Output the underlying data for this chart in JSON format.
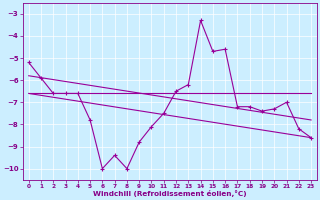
{
  "xlabel": "Windchill (Refroidissement éolien,°C)",
  "background_color": "#cceeff",
  "line_color": "#990099",
  "xlim": [
    -0.5,
    23.5
  ],
  "ylim": [
    -10.5,
    -2.5
  ],
  "yticks": [
    -10,
    -9,
    -8,
    -7,
    -6,
    -5,
    -4,
    -3
  ],
  "xticks": [
    0,
    1,
    2,
    3,
    4,
    5,
    6,
    7,
    8,
    9,
    10,
    11,
    12,
    13,
    14,
    15,
    16,
    17,
    18,
    19,
    20,
    21,
    22,
    23
  ],
  "series1_x": [
    0,
    1,
    2,
    3,
    4,
    5,
    6,
    7,
    8,
    9,
    10,
    11,
    12,
    13,
    14,
    15,
    16,
    17,
    18,
    19,
    20,
    21,
    22,
    23
  ],
  "series1_y": [
    -5.2,
    -5.9,
    -6.6,
    -6.6,
    -6.6,
    -7.8,
    -10.0,
    -9.4,
    -10.0,
    -8.8,
    -8.1,
    -7.5,
    -6.5,
    -6.2,
    -3.3,
    -4.7,
    -4.6,
    -7.2,
    -7.2,
    -7.4,
    -7.3,
    -7.0,
    -8.2,
    -8.6
  ],
  "trend1_x": [
    0,
    23
  ],
  "trend1_y": [
    -6.6,
    -6.6
  ],
  "trend2_x": [
    0,
    23
  ],
  "trend2_y": [
    -5.8,
    -7.8
  ],
  "trend3_x": [
    0,
    23
  ],
  "trend3_y": [
    -6.6,
    -8.6
  ]
}
